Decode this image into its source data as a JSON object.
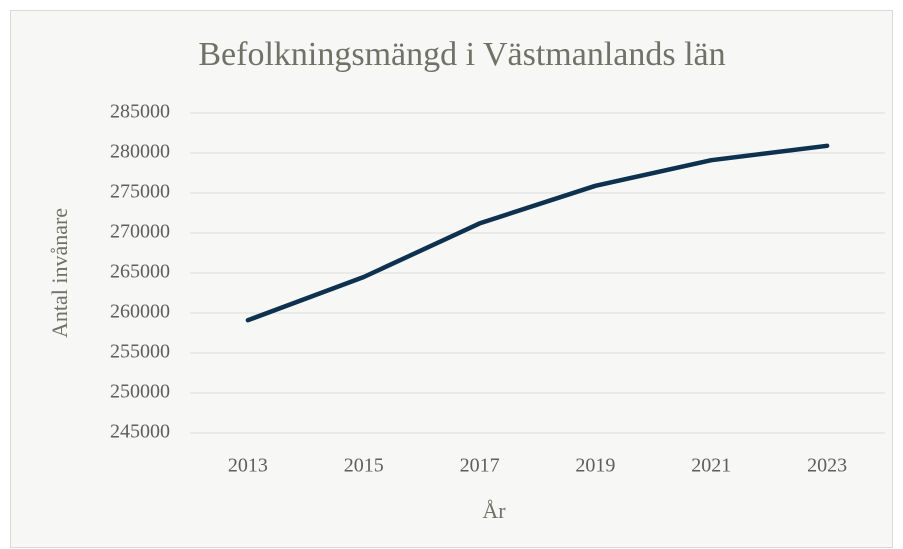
{
  "chart_data": {
    "type": "line",
    "title": "Befolkningsmängd i Västmanlands län",
    "x_label": "År",
    "y_label": "Antal invånare",
    "categories": [
      "2013",
      "2015",
      "2017",
      "2019",
      "2021",
      "2023"
    ],
    "series": [
      {
        "name": "Befolkningsmängd",
        "color": "#0e3150",
        "values": [
          259100,
          264500,
          271200,
          275900,
          279100,
          280900
        ]
      }
    ],
    "ylim": [
      245000,
      285000
    ],
    "yticks": [
      245000,
      250000,
      255000,
      260000,
      265000,
      270000,
      275000,
      280000,
      285000
    ],
    "grid": true
  }
}
